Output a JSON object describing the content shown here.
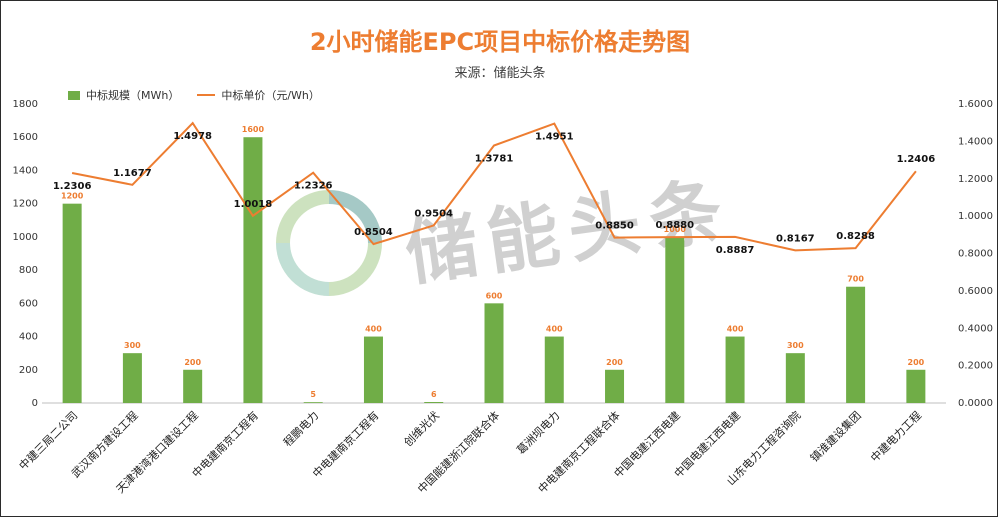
{
  "chart_data": {
    "type": "bar",
    "title": "2小时储能EPC项目中标价格走势图",
    "subtitle": "来源：储能头条",
    "categories": [
      "中建三局二公司",
      "武汉南方建设工程",
      "天津港湾港口建设工程",
      "中电建南京工程有",
      "程鹏电力",
      "中电建南京工程有",
      "创维光伏",
      "中国能建浙江院联合体",
      "葛洲坝电力",
      "中电建南京工程联合体",
      "中国电建江西电建",
      "中国电建江西电建",
      "山东电力工程咨询院",
      "镇淮建设集团",
      "中建电力工程"
    ],
    "series": [
      {
        "name": "中标规模（MWh）",
        "type": "bar",
        "axis": "left",
        "color": "#70ad47",
        "values": [
          1200,
          300,
          200,
          1600,
          5,
          400,
          6,
          600,
          400,
          200,
          1000,
          400,
          300,
          700,
          200
        ]
      },
      {
        "name": "中标单价（元/Wh）",
        "type": "line",
        "axis": "right",
        "color": "#ed7d31",
        "values": [
          1.2306,
          1.1677,
          1.4978,
          1.0018,
          1.2326,
          0.8504,
          0.9504,
          1.3781,
          1.4951,
          0.885,
          0.888,
          0.8887,
          0.8167,
          0.8288,
          1.2406
        ]
      }
    ],
    "bar_labels": [
      "1200",
      "300",
      "200",
      "1600",
      "5",
      "400",
      "6",
      "600",
      "400",
      "200",
      "1000",
      "400",
      "300",
      "700",
      "200"
    ],
    "price_labels": [
      "1.2306",
      "1.1677",
      "1.4978",
      "1.0018",
      "1.2326",
      "0.8504",
      "0.9504",
      "1.3781",
      "1.4951",
      "0.8850",
      "0.8880",
      "0.8887",
      "0.8167",
      "0.8288",
      "1.2406"
    ],
    "ylim_left": [
      0,
      1800
    ],
    "ylim_right": [
      0,
      1.6
    ],
    "yticks_left": [
      "0",
      "200",
      "400",
      "600",
      "800",
      "1000",
      "1200",
      "1400",
      "1600",
      "1800"
    ],
    "yticks_right": [
      "0.0000",
      "0.2000",
      "0.4000",
      "0.6000",
      "0.8000",
      "1.0000",
      "1.2000",
      "1.4000",
      "1.6000"
    ],
    "legend_position": "top-left",
    "grid": false
  },
  "watermark": {
    "text": "储能头条"
  }
}
